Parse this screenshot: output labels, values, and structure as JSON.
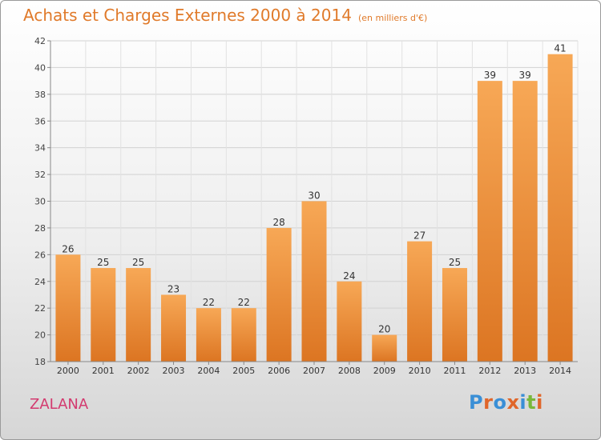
{
  "header": {
    "title": "Achats et Charges Externes 2000 à 2014",
    "unit": "(en milliers d'€)"
  },
  "footer": {
    "region": "ZALANA",
    "logo_text": "Proxiti"
  },
  "colors": {
    "title": "#e07a2a",
    "bar_top": "#f7a856",
    "bar_bottom": "#dc7522",
    "region": "#d33a6f",
    "logo_letters": [
      "#3a8fd6",
      "#e0662a",
      "#3a8fd6",
      "#e0662a",
      "#3a8fd6",
      "#78b83a",
      "#e0662a"
    ]
  },
  "chart_data": {
    "type": "bar",
    "categories": [
      "2000",
      "2001",
      "2002",
      "2003",
      "2004",
      "2005",
      "2006",
      "2007",
      "2008",
      "2009",
      "2010",
      "2011",
      "2012",
      "2013",
      "2014"
    ],
    "values": [
      26,
      25,
      25,
      23,
      22,
      22,
      28,
      30,
      24,
      20,
      27,
      25,
      39,
      39,
      41
    ],
    "ylim": [
      18,
      42
    ],
    "yticks": [
      18,
      20,
      22,
      24,
      26,
      28,
      30,
      32,
      34,
      36,
      38,
      40,
      42
    ],
    "grid": true,
    "xlabel": "",
    "ylabel": ""
  }
}
